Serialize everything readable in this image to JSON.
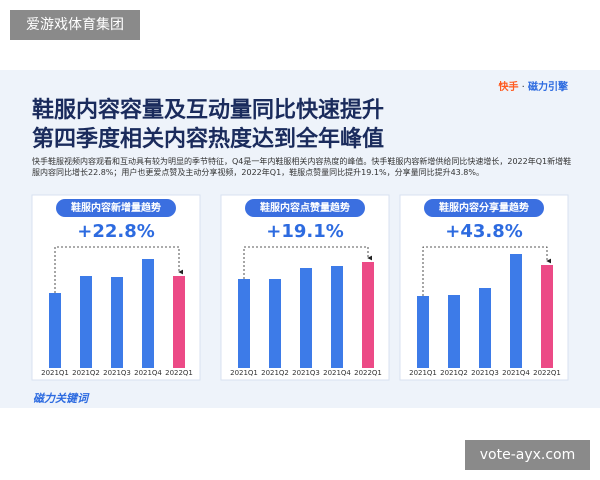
{
  "watermark_top": "爱游戏体育集团",
  "watermark_bottom": "vote-ayx.com",
  "brand": {
    "kuaishou": "快手",
    "cili": "磁力引擎"
  },
  "title": [
    "鞋服内容容量及互动量同比快速提升",
    "第四季度相关内容热度达到全年峰值"
  ],
  "body": "快手鞋服视频内容观看和互动具有较为明显的季节特征，Q4是一年内鞋服相关内容热度的峰值。快手鞋服内容新增供给同比快速增长，2022年Q1新增鞋服内容同比增长22.8%；用户也更爱点赞及主动分享视频，2022年Q1，鞋服点赞量同比提升19.1%，分享量同比提升43.8%。",
  "footer_logo": "磁力关键词",
  "chart_data": [
    {
      "type": "bar",
      "title": "鞋服内容新增量趋势",
      "annotation": "+22.8%",
      "categories": [
        "2021Q1",
        "2021Q2",
        "2021Q3",
        "2021Q4",
        "2022Q1"
      ],
      "values": [
        75,
        92,
        91,
        109,
        92
      ],
      "colors": [
        "#3d7be8",
        "#3d7be8",
        "#3d7be8",
        "#3d7be8",
        "#ec4a86"
      ]
    },
    {
      "type": "bar",
      "title": "鞋服内容点赞量趋势",
      "annotation": "+19.1%",
      "categories": [
        "2021Q1",
        "2021Q2",
        "2021Q3",
        "2021Q4",
        "2022Q1"
      ],
      "values": [
        89,
        89,
        100,
        102,
        106
      ],
      "colors": [
        "#3d7be8",
        "#3d7be8",
        "#3d7be8",
        "#3d7be8",
        "#ec4a86"
      ]
    },
    {
      "type": "bar",
      "title": "鞋服内容分享量趋势",
      "annotation": "+43.8%",
      "categories": [
        "2021Q1",
        "2021Q2",
        "2021Q3",
        "2021Q4",
        "2022Q1"
      ],
      "values": [
        72,
        73,
        80,
        114,
        103
      ],
      "colors": [
        "#3d7be8",
        "#3d7be8",
        "#3d7be8",
        "#3d7be8",
        "#ec4a86"
      ]
    }
  ]
}
